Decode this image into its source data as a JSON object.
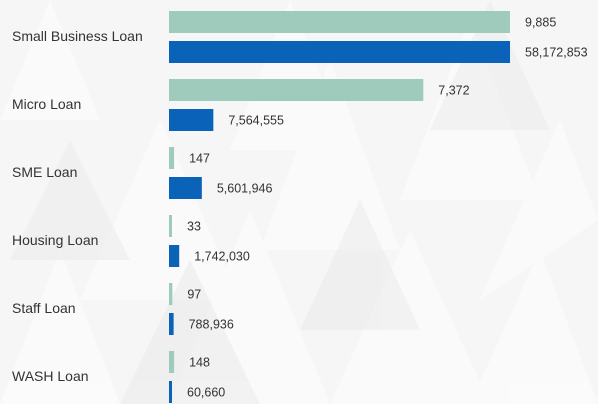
{
  "chart_data": {
    "type": "bar",
    "orientation": "horizontal",
    "categories": [
      "Small Business Loan",
      "Micro Loan",
      "SME Loan",
      "Housing Loan",
      "Staff Loan",
      "WASH Loan"
    ],
    "series": [
      {
        "values": [
          9885,
          7372,
          147,
          33,
          97,
          148
        ],
        "labels": [
          "9,885",
          "7,372",
          "147",
          "33",
          "97",
          "148"
        ],
        "color": "#9fcbbd"
      },
      {
        "values": [
          58172853,
          7564555,
          5601946,
          1742030,
          788936,
          60660
        ],
        "labels": [
          "58,172,853",
          "7,564,555",
          "5,601,946",
          "1,742,030",
          "788,936",
          "60,660"
        ],
        "color": "#0a63b8"
      }
    ],
    "title": "",
    "xlabel": "",
    "ylabel": "",
    "grid": false,
    "legend": "none"
  },
  "colors": {
    "background": "#f6f6f6",
    "text": "#333333"
  }
}
